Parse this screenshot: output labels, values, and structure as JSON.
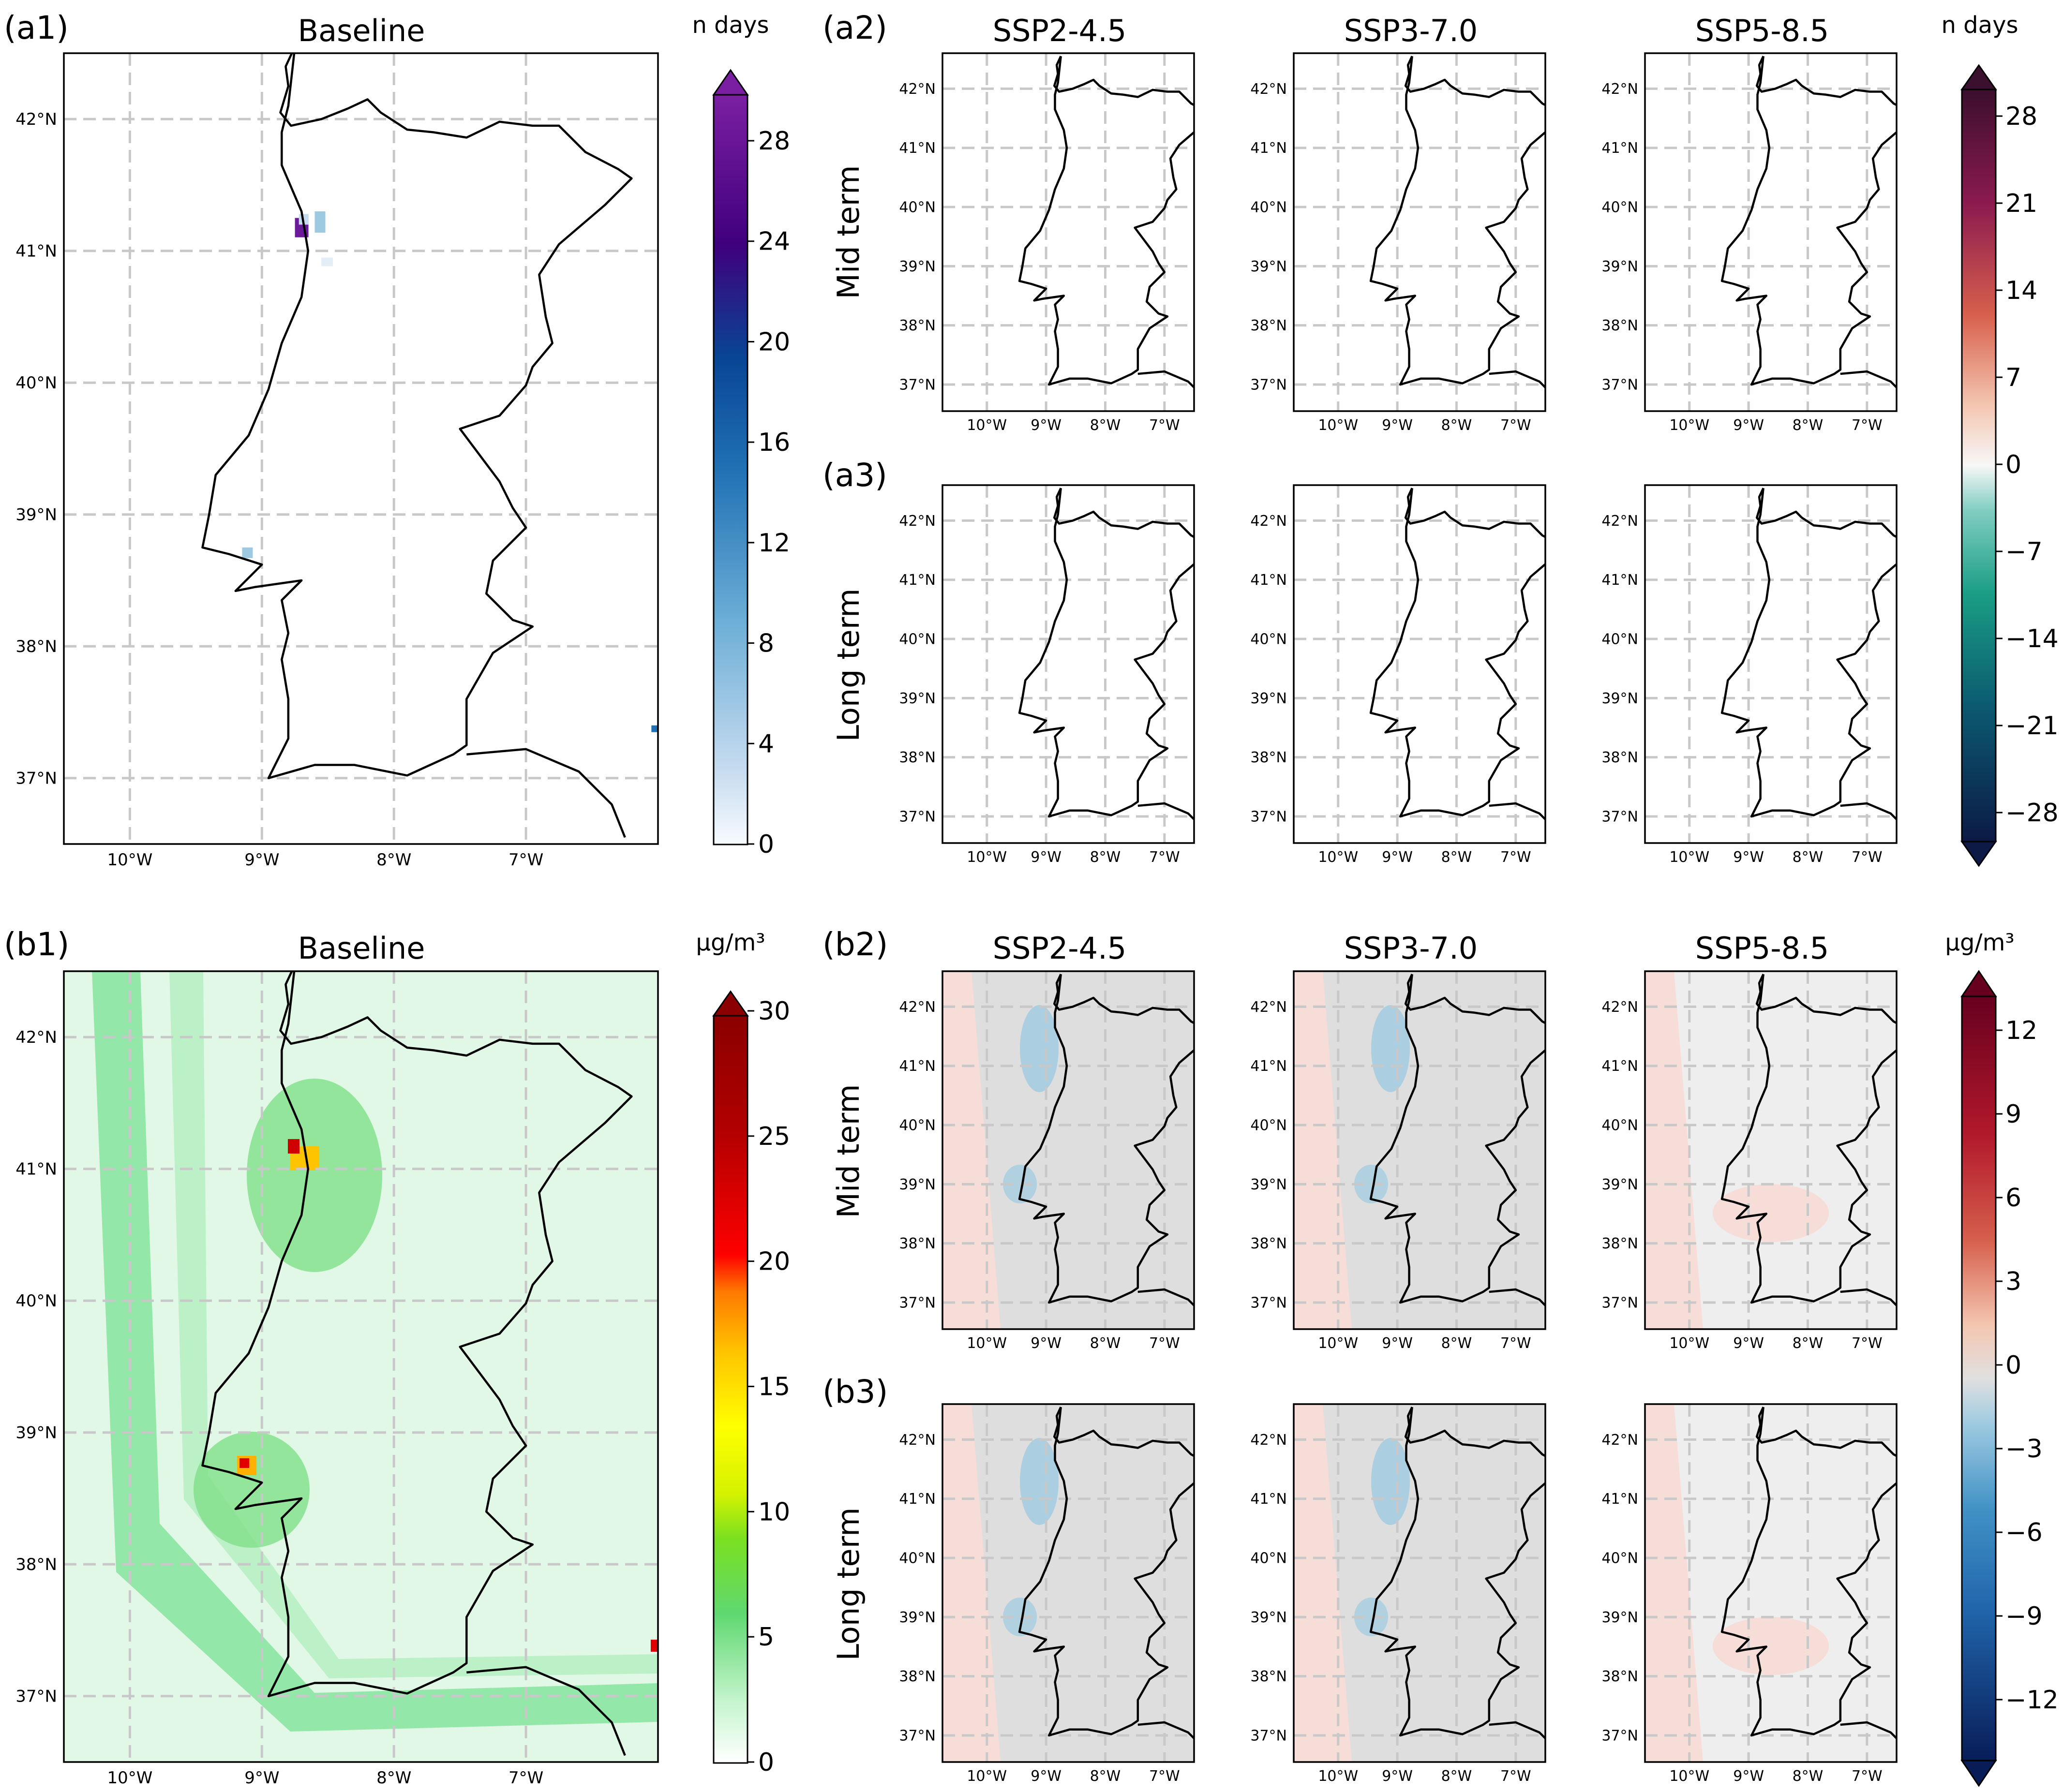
{
  "figure": {
    "panel_labels": {
      "a1": "(a1)",
      "a2": "(a2)",
      "a3": "(a3)",
      "b1": "(b1)",
      "b2": "(b2)",
      "b3": "(b3)"
    },
    "baseline_title": "Baseline",
    "scenarios": [
      "SSP2-4.5",
      "SSP3-7.0",
      "SSP5-8.5"
    ],
    "row_labels": {
      "mid": "Mid term",
      "long": "Long term"
    },
    "lat_ticks": [
      "37°N",
      "38°N",
      "39°N",
      "40°N",
      "41°N",
      "42°N"
    ],
    "lon_ticks": [
      "10°W",
      "9°W",
      "8°W",
      "7°W"
    ]
  },
  "colorbars": {
    "a_baseline": {
      "unit": "n days",
      "ticks": [
        "0",
        "4",
        "8",
        "12",
        "16",
        "20",
        "24",
        "28"
      ],
      "colors": [
        "#f7fbff",
        "#c6dbef",
        "#6baed6",
        "#2171b5",
        "#084594",
        "#3f007d",
        "#6a1b9a",
        "#7b1fa2"
      ]
    },
    "a_change": {
      "unit": "n days",
      "ticks": [
        "28",
        "21",
        "14",
        "7",
        "0",
        "−7",
        "−14",
        "−21",
        "−28"
      ],
      "colors": [
        "#3b0f2e",
        "#8b1a4f",
        "#d7604d",
        "#f4a582",
        "#f7f7f7",
        "#80cdc1",
        "#1a9e85",
        "#0b5a70",
        "#0c1a45"
      ]
    },
    "b_baseline": {
      "unit": "µg/m³",
      "ticks": [
        "0",
        "5",
        "10",
        "15",
        "20",
        "25",
        "30"
      ],
      "colors": [
        "#ffffff",
        "#c7f5cf",
        "#6fe38a",
        "#3fd25a",
        "#5fe020",
        "#c6f000",
        "#ffff00",
        "#ffc400",
        "#ff8c00",
        "#ff3000",
        "#d00000",
        "#8b0000"
      ]
    },
    "b_change": {
      "unit": "µg/m³",
      "ticks": [
        "12",
        "9",
        "6",
        "3",
        "0",
        "−3",
        "−6",
        "−9",
        "−12"
      ],
      "colors": [
        "#67001f",
        "#b2182b",
        "#d6604d",
        "#f4a582",
        "#e0e0e0",
        "#9ecae1",
        "#4292c6",
        "#2166ac",
        "#081d58"
      ]
    }
  }
}
